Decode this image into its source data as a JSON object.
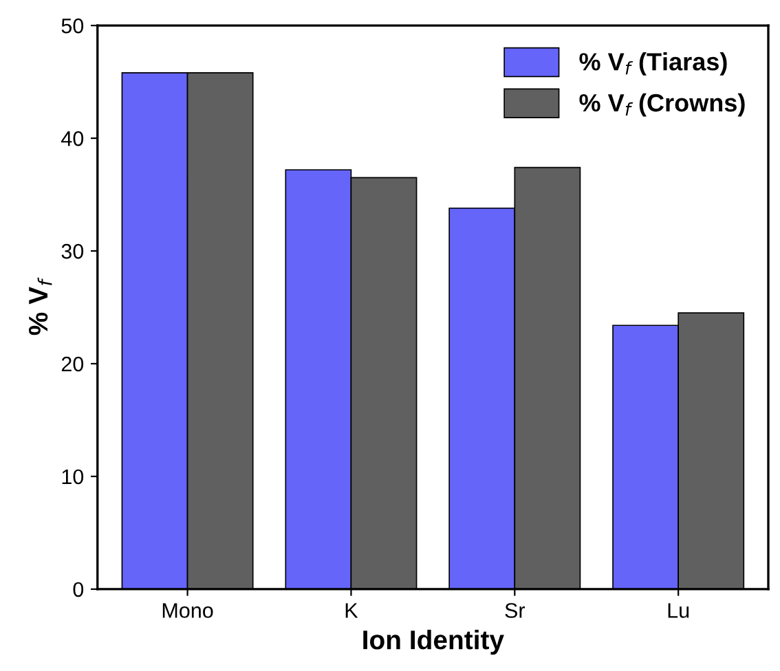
{
  "chart_data": {
    "type": "bar",
    "xlabel": "Ion Identity",
    "ylabel": "% V$_{f}$",
    "categories": [
      "Mono",
      "K",
      "Sr",
      "Lu"
    ],
    "series": [
      {
        "name": "% V$_{f}$ (Tiaras)",
        "color": "#6565fa",
        "values": [
          45.8,
          37.2,
          33.8,
          23.4
        ]
      },
      {
        "name": "% V$_{f}$ (Crowns)",
        "color": "#606060",
        "values": [
          45.8,
          36.5,
          37.4,
          24.5
        ]
      }
    ],
    "ylim": [
      0,
      50
    ],
    "yticks": [
      0,
      10,
      20,
      30,
      40,
      50
    ],
    "legend": "top right"
  }
}
